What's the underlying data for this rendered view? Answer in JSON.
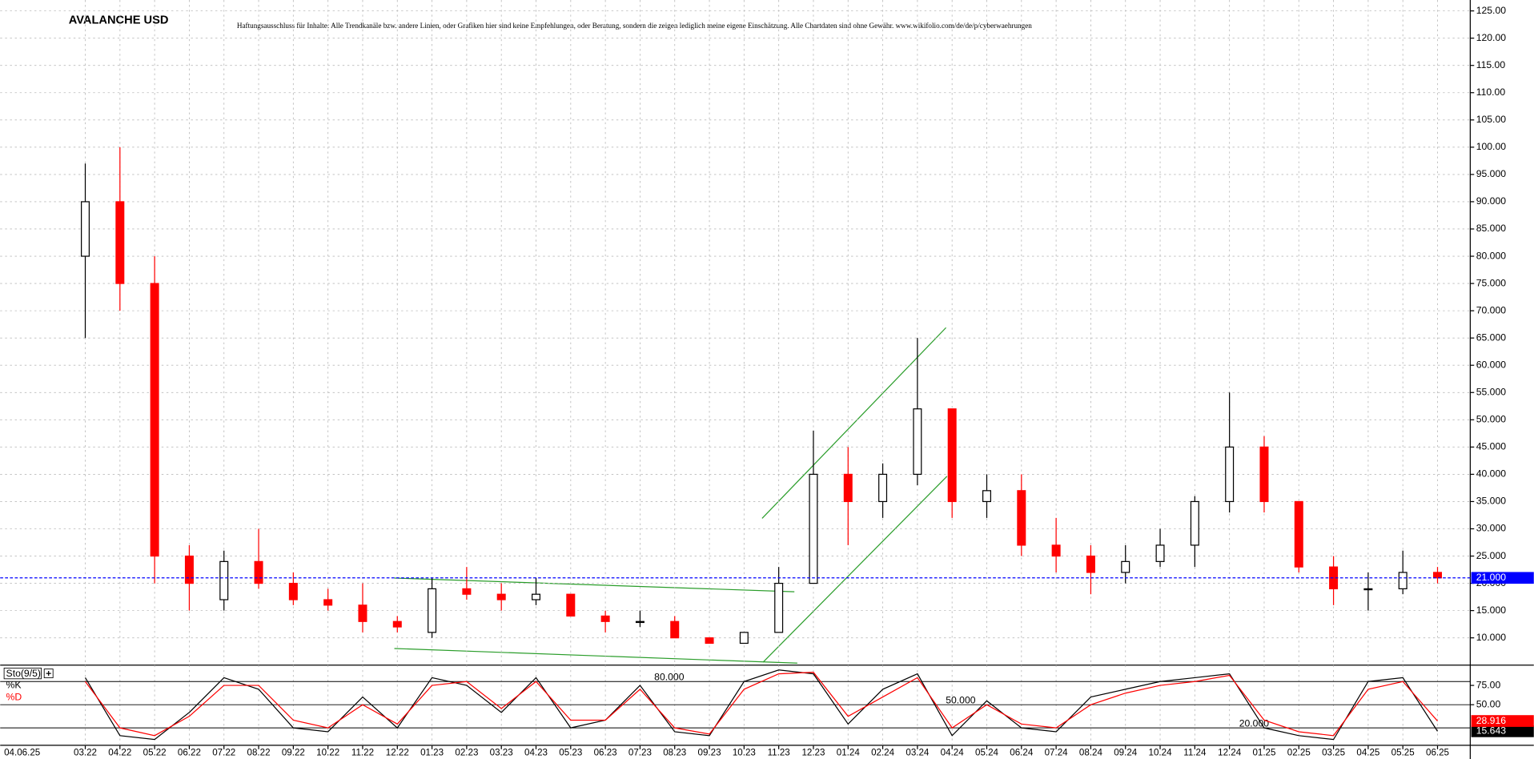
{
  "chart_data": {
    "type": "candlestick",
    "title": "AVALANCHE USD",
    "subtitle": "Haftungsausschluss für Inhalte: Alle Trendkanäle bzw. andere Linien, oder Grafiken hier sind keine Empfehlungen, oder Beratung, sondern die zeigen lediglich meine eigene Einschätzung. Alle Chartdaten sind ohne Gewähr.  www.wikifolio.com/de/de/p/cyberwaehrungen",
    "date_label": "04.06.25",
    "categories": [
      "03.22",
      "04.22",
      "05.22",
      "06.22",
      "07.22",
      "08.22",
      "09.22",
      "10.22",
      "11.22",
      "12.22",
      "01.23",
      "02.23",
      "03.23",
      "04.23",
      "05.23",
      "06.23",
      "07.23",
      "08.23",
      "09.23",
      "10.23",
      "11.23",
      "12.23",
      "01.24",
      "02.24",
      "03.24",
      "04.24",
      "05.24",
      "06.24",
      "07.24",
      "08.24",
      "09.24",
      "10.24",
      "11.24",
      "12.24",
      "01.25",
      "02.25",
      "03.25",
      "04.25",
      "05.25",
      "06.25"
    ],
    "open": [
      80,
      90,
      75,
      25,
      17,
      24,
      20,
      17,
      16,
      13,
      11,
      19,
      18,
      17,
      18,
      14,
      13,
      13,
      10,
      9,
      11,
      20,
      40,
      35,
      40,
      52,
      35,
      37,
      27,
      25,
      22,
      24,
      27,
      35,
      45,
      35,
      23,
      19,
      19,
      22
    ],
    "high": [
      97,
      100,
      80,
      27,
      26,
      30,
      22,
      19,
      20,
      14,
      21,
      23,
      20,
      21,
      18,
      15,
      15,
      14,
      10,
      11,
      23,
      48,
      45,
      42,
      65,
      52,
      40,
      40,
      32,
      27,
      27,
      30,
      36,
      55,
      47,
      35,
      25,
      22,
      26,
      23
    ],
    "low": [
      65,
      70,
      20,
      15,
      15,
      19,
      16,
      15,
      11,
      11,
      10,
      17,
      15,
      16,
      14,
      11,
      12,
      10,
      9,
      9,
      11,
      20,
      27,
      32,
      38,
      32,
      32,
      25,
      22,
      18,
      20,
      23,
      23,
      33,
      33,
      22,
      16,
      15,
      18,
      20
    ],
    "close": [
      90,
      75,
      25,
      20,
      24,
      20,
      17,
      16,
      13,
      12,
      19,
      18,
      17,
      18,
      14,
      13,
      13,
      10,
      9,
      11,
      20,
      40,
      35,
      40,
      52,
      35,
      37,
      27,
      25,
      22,
      24,
      27,
      35,
      45,
      35,
      23,
      19,
      19,
      22,
      21
    ],
    "up_color": "#000000",
    "down_color": "#ff0000",
    "ylim": [
      5,
      127
    ],
    "yticks": [
      {
        "value": 125,
        "label": "125.00"
      },
      {
        "value": 120,
        "label": "120.00"
      },
      {
        "value": 115,
        "label": "115.00"
      },
      {
        "value": 110,
        "label": "110.00"
      },
      {
        "value": 105,
        "label": "105.00"
      },
      {
        "value": 100,
        "label": "100.00"
      },
      {
        "value": 95,
        "label": "95.000"
      },
      {
        "value": 90,
        "label": "90.000"
      },
      {
        "value": 85,
        "label": "85.000"
      },
      {
        "value": 80,
        "label": "80.000"
      },
      {
        "value": 75,
        "label": "75.000"
      },
      {
        "value": 70,
        "label": "70.000"
      },
      {
        "value": 65,
        "label": "65.000"
      },
      {
        "value": 60,
        "label": "60.000"
      },
      {
        "value": 55,
        "label": "55.000"
      },
      {
        "value": 50,
        "label": "50.000"
      },
      {
        "value": 45,
        "label": "45.000"
      },
      {
        "value": 40,
        "label": "40.000"
      },
      {
        "value": 35,
        "label": "35.000"
      },
      {
        "value": 30,
        "label": "30.000"
      },
      {
        "value": 25,
        "label": "25.000"
      },
      {
        "value": 20,
        "label": "20.000"
      },
      {
        "value": 15,
        "label": "15.000"
      },
      {
        "value": 10,
        "label": "10.000"
      }
    ],
    "grid": true,
    "last_price": {
      "value": 21,
      "label": "21.000",
      "color": "#0000ff"
    },
    "indicator": {
      "name": "Sto(9/5)",
      "ylim": [
        0,
        100
      ],
      "yticks": [
        {
          "value": 75,
          "label": "75.00"
        },
        {
          "value": 50,
          "label": "50.00"
        }
      ],
      "levels": [
        {
          "value": 80,
          "label": "80.000"
        },
        {
          "value": 50,
          "label": "50.000"
        },
        {
          "value": 20,
          "label": "20.000"
        }
      ],
      "series": [
        {
          "name": "%K",
          "color": "#000000",
          "values": [
            85,
            10,
            5,
            40,
            85,
            70,
            20,
            15,
            60,
            20,
            85,
            75,
            40,
            85,
            20,
            30,
            75,
            15,
            10,
            80,
            95,
            90,
            25,
            70,
            90,
            10,
            55,
            20,
            15,
            60,
            70,
            80,
            85,
            90,
            20,
            10,
            5,
            80,
            85,
            15.643
          ],
          "value_label": "15.643"
        },
        {
          "name": "%D",
          "color": "#ff0000",
          "values": [
            80,
            20,
            10,
            35,
            75,
            75,
            30,
            20,
            50,
            25,
            75,
            80,
            45,
            80,
            30,
            30,
            70,
            20,
            12,
            70,
            90,
            92,
            35,
            60,
            85,
            20,
            50,
            25,
            20,
            50,
            65,
            75,
            80,
            88,
            30,
            15,
            10,
            70,
            80,
            28.916
          ],
          "value_label": "28.916"
        }
      ]
    }
  }
}
